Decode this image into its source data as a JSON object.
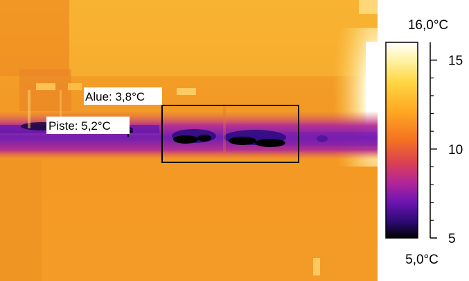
{
  "thermogram": {
    "spot_label": "Piste: 5,2°C",
    "area_label": "Alue: 3,8°C"
  },
  "scale": {
    "max_label": "16,0°C",
    "min_label": "5,0°C",
    "max_value": 16.0,
    "min_value": 5.0,
    "ticks": [
      {
        "value": 15,
        "label": "15"
      },
      {
        "value": 10,
        "label": "10"
      },
      {
        "value": 5,
        "label": "5"
      }
    ],
    "minor_ticks": [
      6,
      7,
      8,
      9,
      11,
      12,
      13,
      14
    ],
    "palette": [
      "#ffffff",
      "#fff2a0",
      "#ffd040",
      "#ffa020",
      "#f07020",
      "#d0306a",
      "#a020a0",
      "#6010b0",
      "#200050",
      "#000000"
    ]
  }
}
